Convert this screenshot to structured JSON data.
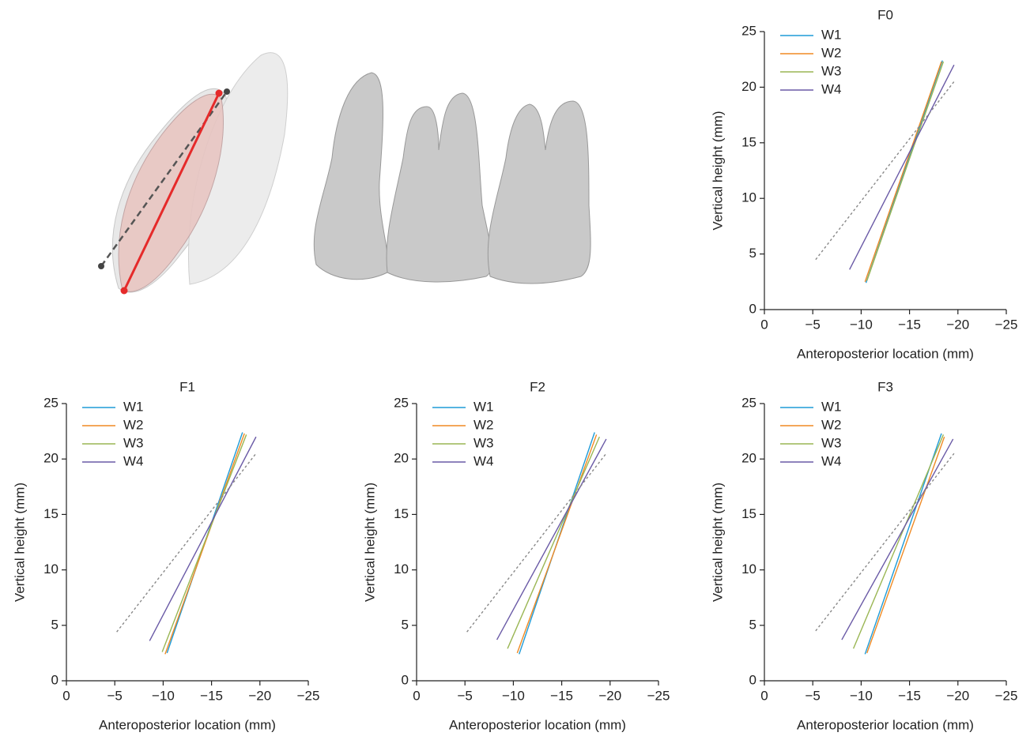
{
  "chart_data": [
    {
      "type": "line",
      "title": "F0",
      "xlabel": "Anteroposterior location (mm)",
      "ylabel": "Vertical height (mm)",
      "xlim": [
        0,
        -25
      ],
      "xticks": [
        0,
        {
          "value": -5,
          "label": "−5"
        },
        {
          "value": -10,
          "label": "−10"
        },
        {
          "value": -15,
          "label": "−15"
        },
        {
          "value": -20,
          "label": "−20"
        },
        {
          "value": -25,
          "label": "−25"
        }
      ],
      "ylim": [
        0,
        25
      ],
      "yticks": [
        0,
        5,
        10,
        15,
        20,
        25
      ],
      "legend": "upper-left",
      "series": [
        {
          "name": "W1",
          "color": "#1f9bd7",
          "x": [
            -10.5,
            -18.4
          ],
          "values": [
            2.4,
            22.4
          ]
        },
        {
          "name": "W2",
          "color": "#f08a24",
          "x": [
            -10.4,
            -18.3
          ],
          "values": [
            2.5,
            22.3
          ]
        },
        {
          "name": "W3",
          "color": "#9ab654",
          "x": [
            -10.6,
            -18.5
          ],
          "values": [
            2.6,
            22.3
          ]
        },
        {
          "name": "W4",
          "color": "#6a5aa6",
          "x": [
            -8.8,
            -19.6
          ],
          "values": [
            3.6,
            22.0
          ]
        },
        {
          "color": "#888888",
          "dash": true,
          "x": [
            -5.3,
            -19.6
          ],
          "values": [
            4.5,
            20.5
          ]
        }
      ]
    },
    {
      "type": "line",
      "title": "F1",
      "xlabel": "Anteroposterior location (mm)",
      "ylabel": "Vertical height (mm)",
      "xlim": [
        0,
        -25
      ],
      "xticks": [
        0,
        {
          "value": -5,
          "label": "−5"
        },
        {
          "value": -10,
          "label": "−10"
        },
        {
          "value": -15,
          "label": "−15"
        },
        {
          "value": -20,
          "label": "−20"
        },
        {
          "value": -25,
          "label": "−25"
        }
      ],
      "ylim": [
        0,
        25
      ],
      "yticks": [
        0,
        5,
        10,
        15,
        20,
        25
      ],
      "legend": "upper-left",
      "series": [
        {
          "name": "W1",
          "color": "#1f9bd7",
          "x": [
            -10.4,
            -18.2
          ],
          "values": [
            2.5,
            22.4
          ]
        },
        {
          "name": "W2",
          "color": "#f08a24",
          "x": [
            -10.2,
            -18.4
          ],
          "values": [
            2.4,
            22.3
          ]
        },
        {
          "name": "W3",
          "color": "#9ab654",
          "x": [
            -9.9,
            -18.6
          ],
          "values": [
            2.6,
            22.2
          ]
        },
        {
          "name": "W4",
          "color": "#6a5aa6",
          "x": [
            -8.6,
            -19.6
          ],
          "values": [
            3.6,
            22.0
          ]
        },
        {
          "color": "#888888",
          "dash": true,
          "x": [
            -5.2,
            -19.6
          ],
          "values": [
            4.4,
            20.5
          ]
        }
      ]
    },
    {
      "type": "line",
      "title": "F2",
      "xlabel": "Anteroposterior location (mm)",
      "ylabel": "Vertical height (mm)",
      "xlim": [
        0,
        -25
      ],
      "xticks": [
        0,
        {
          "value": -5,
          "label": "−5"
        },
        {
          "value": -10,
          "label": "−10"
        },
        {
          "value": -15,
          "label": "−15"
        },
        {
          "value": -20,
          "label": "−20"
        },
        {
          "value": -25,
          "label": "−25"
        }
      ],
      "ylim": [
        0,
        25
      ],
      "yticks": [
        0,
        5,
        10,
        15,
        20,
        25
      ],
      "legend": "upper-left",
      "series": [
        {
          "name": "W1",
          "color": "#1f9bd7",
          "x": [
            -10.6,
            -18.4
          ],
          "values": [
            2.4,
            22.4
          ]
        },
        {
          "name": "W2",
          "color": "#f08a24",
          "x": [
            -10.4,
            -18.6
          ],
          "values": [
            2.5,
            22.2
          ]
        },
        {
          "name": "W3",
          "color": "#9ab654",
          "x": [
            -9.4,
            -18.9
          ],
          "values": [
            2.9,
            22.0
          ]
        },
        {
          "name": "W4",
          "color": "#6a5aa6",
          "x": [
            -8.3,
            -19.6
          ],
          "values": [
            3.7,
            21.8
          ]
        },
        {
          "color": "#888888",
          "dash": true,
          "x": [
            -5.2,
            -19.6
          ],
          "values": [
            4.4,
            20.5
          ]
        }
      ]
    },
    {
      "type": "line",
      "title": "F3",
      "xlabel": "Anteroposterior location (mm)",
      "ylabel": "Vertical height (mm)",
      "xlim": [
        0,
        -25
      ],
      "xticks": [
        0,
        {
          "value": -5,
          "label": "−5"
        },
        {
          "value": -10,
          "label": "−10"
        },
        {
          "value": -15,
          "label": "−15"
        },
        {
          "value": -20,
          "label": "−20"
        },
        {
          "value": -25,
          "label": "−25"
        }
      ],
      "ylim": [
        0,
        25
      ],
      "yticks": [
        0,
        5,
        10,
        15,
        20,
        25
      ],
      "legend": "upper-left",
      "series": [
        {
          "name": "W1",
          "color": "#1f9bd7",
          "x": [
            -10.4,
            -18.3
          ],
          "values": [
            2.4,
            22.3
          ]
        },
        {
          "name": "W2",
          "color": "#f08a24",
          "x": [
            -10.6,
            -18.6
          ],
          "values": [
            2.5,
            22.0
          ]
        },
        {
          "name": "W3",
          "color": "#9ab654",
          "x": [
            -9.2,
            -18.5
          ],
          "values": [
            2.9,
            22.2
          ]
        },
        {
          "name": "W4",
          "color": "#6a5aa6",
          "x": [
            -8.0,
            -19.5
          ],
          "values": [
            3.7,
            21.8
          ]
        },
        {
          "color": "#888888",
          "dash": true,
          "x": [
            -5.3,
            -19.6
          ],
          "values": [
            4.5,
            20.5
          ]
        }
      ]
    }
  ]
}
